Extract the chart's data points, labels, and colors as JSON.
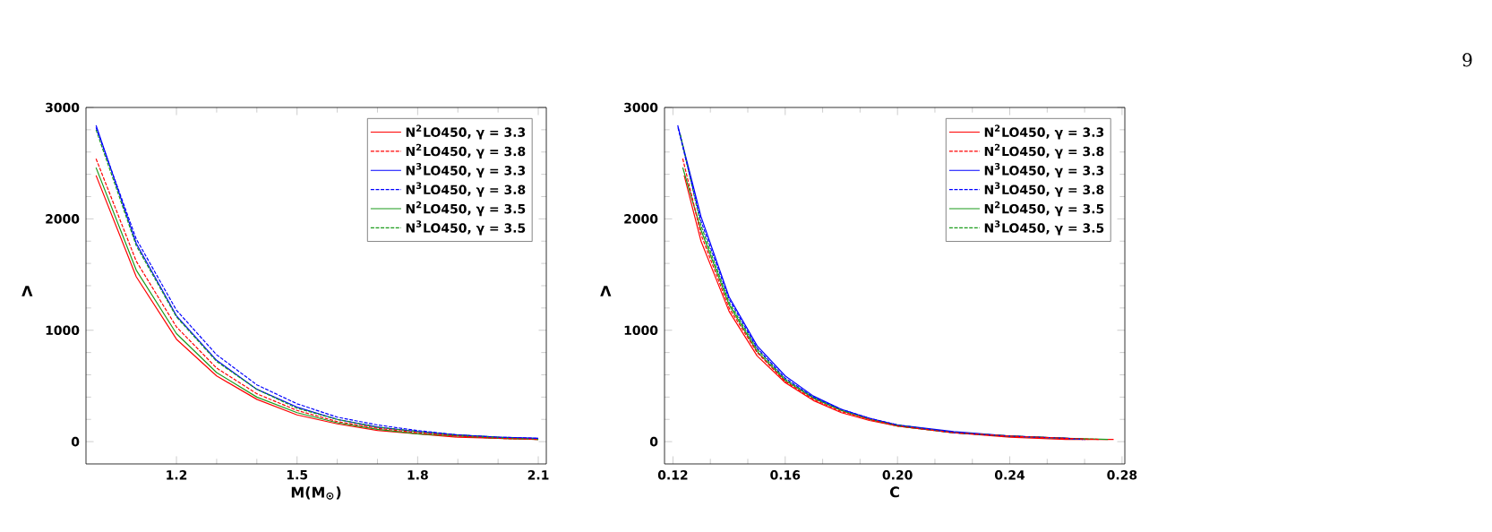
{
  "chart_data": [
    {
      "type": "line",
      "xlabel": "M(M$_{⊙}$)",
      "ylabel": "Λ",
      "xlim": [
        0.975,
        2.12
      ],
      "ylim": [
        -200,
        3000
      ],
      "xticks": [
        1.2,
        1.5,
        1.8,
        2.1
      ],
      "yticks": [
        0,
        1000,
        2000,
        3000
      ],
      "grid": false,
      "legend": "top right",
      "x": [
        1.0,
        1.1,
        1.2,
        1.3,
        1.4,
        1.5,
        1.6,
        1.7,
        1.8,
        1.9,
        2.0,
        2.1
      ],
      "series": [
        {
          "name": "N$^{2}$LO450, γ = 3.3",
          "color": "#ff0000",
          "line_style": "solid",
          "values": [
            2390,
            1480,
            920,
            590,
            380,
            240,
            160,
            100,
            70,
            40,
            30,
            20
          ]
        },
        {
          "name": "N$^{2}$LO450, γ = 3.8",
          "color": "#ff0000",
          "line_style": "dashed",
          "values": [
            2540,
            1620,
            1030,
            660,
            430,
            280,
            180,
            120,
            80,
            50,
            30,
            20
          ]
        },
        {
          "name": "N$^{3}$LO450, γ = 3.3",
          "color": "#0000ff",
          "line_style": "solid",
          "values": [
            2840,
            1780,
            1130,
            730,
            470,
            310,
            200,
            130,
            90,
            60,
            40,
            30
          ]
        },
        {
          "name": "N$^{3}$LO450, γ = 3.8",
          "color": "#0000ff",
          "line_style": "dashed",
          "values": [
            2820,
            1820,
            1180,
            780,
            510,
            340,
            220,
            150,
            100,
            60,
            40,
            30
          ]
        },
        {
          "name": "N$^{2}$LO450, γ = 3.5",
          "color": "#1a9a1a",
          "line_style": "solid",
          "values": [
            2460,
            1540,
            970,
            620,
            400,
            260,
            170,
            110,
            70,
            50,
            30,
            20
          ]
        },
        {
          "name": "N$^{3}$LO450, γ = 3.5",
          "color": "#1a9a1a",
          "line_style": "dashed",
          "values": [
            2800,
            1760,
            1120,
            720,
            470,
            300,
            200,
            130,
            90,
            60,
            40,
            20
          ]
        }
      ]
    },
    {
      "type": "line",
      "xlabel": "C",
      "ylabel": "Λ",
      "xlim": [
        0.117,
        0.281
      ],
      "ylim": [
        -200,
        3000
      ],
      "xticks": [
        0.12,
        0.16,
        {
          "value": 0.2,
          "label": "0.20"
        },
        0.24,
        0.28
      ],
      "yticks": [
        0,
        1000,
        2000,
        3000
      ],
      "grid": false,
      "legend": "top right",
      "annotations": [
        "9"
      ],
      "series": [
        {
          "name": "N$^{2}$LO450, γ = 3.3",
          "color": "#ff0000",
          "line_style": "solid",
          "x": [
            0.124,
            0.13,
            0.14,
            0.15,
            0.16,
            0.17,
            0.18,
            0.19,
            0.2,
            0.22,
            0.24,
            0.26,
            0.277
          ],
          "values": [
            2390,
            1800,
            1170,
            770,
            530,
            370,
            260,
            190,
            140,
            80,
            40,
            20,
            20
          ]
        },
        {
          "name": "N$^{2}$LO450, γ = 3.8",
          "color": "#ff0000",
          "line_style": "dashed",
          "x": [
            0.1235,
            0.13,
            0.14,
            0.15,
            0.16,
            0.17,
            0.18,
            0.19,
            0.2,
            0.22,
            0.24,
            0.26,
            0.272
          ],
          "values": [
            2540,
            1860,
            1200,
            800,
            540,
            380,
            270,
            200,
            140,
            80,
            50,
            30,
            20
          ]
        },
        {
          "name": "N$^{3}$LO450, γ = 3.3",
          "color": "#0000ff",
          "line_style": "solid",
          "x": [
            0.1217,
            0.13,
            0.14,
            0.15,
            0.16,
            0.17,
            0.18,
            0.19,
            0.2,
            0.22,
            0.24,
            0.26,
            0.267
          ],
          "values": [
            2840,
            2020,
            1300,
            860,
            590,
            410,
            290,
            210,
            150,
            90,
            50,
            30,
            20
          ]
        },
        {
          "name": "N$^{3}$LO450, γ = 3.8",
          "color": "#0000ff",
          "line_style": "dashed",
          "x": [
            0.1218,
            0.13,
            0.14,
            0.15,
            0.16,
            0.17,
            0.18,
            0.19,
            0.2,
            0.22,
            0.24,
            0.26,
            0.266
          ],
          "values": [
            2820,
            1980,
            1280,
            840,
            570,
            400,
            290,
            210,
            150,
            80,
            50,
            30,
            20
          ]
        },
        {
          "name": "N$^{2}$LO450, γ = 3.5",
          "color": "#1a9a1a",
          "line_style": "solid",
          "x": [
            0.1235,
            0.13,
            0.14,
            0.15,
            0.16,
            0.17,
            0.18,
            0.19,
            0.2,
            0.22,
            0.24,
            0.26,
            0.275
          ],
          "values": [
            2460,
            1900,
            1230,
            810,
            550,
            390,
            280,
            200,
            140,
            80,
            50,
            30,
            20
          ]
        },
        {
          "name": "N$^{3}$LO450, γ = 3.5",
          "color": "#1a9a1a",
          "line_style": "dashed",
          "x": [
            0.1226,
            0.13,
            0.14,
            0.15,
            0.16,
            0.17,
            0.18,
            0.19,
            0.2,
            0.22,
            0.24,
            0.26,
            0.268
          ],
          "values": [
            2760,
            1940,
            1250,
            830,
            560,
            400,
            280,
            200,
            150,
            80,
            50,
            30,
            20
          ]
        }
      ]
    }
  ]
}
